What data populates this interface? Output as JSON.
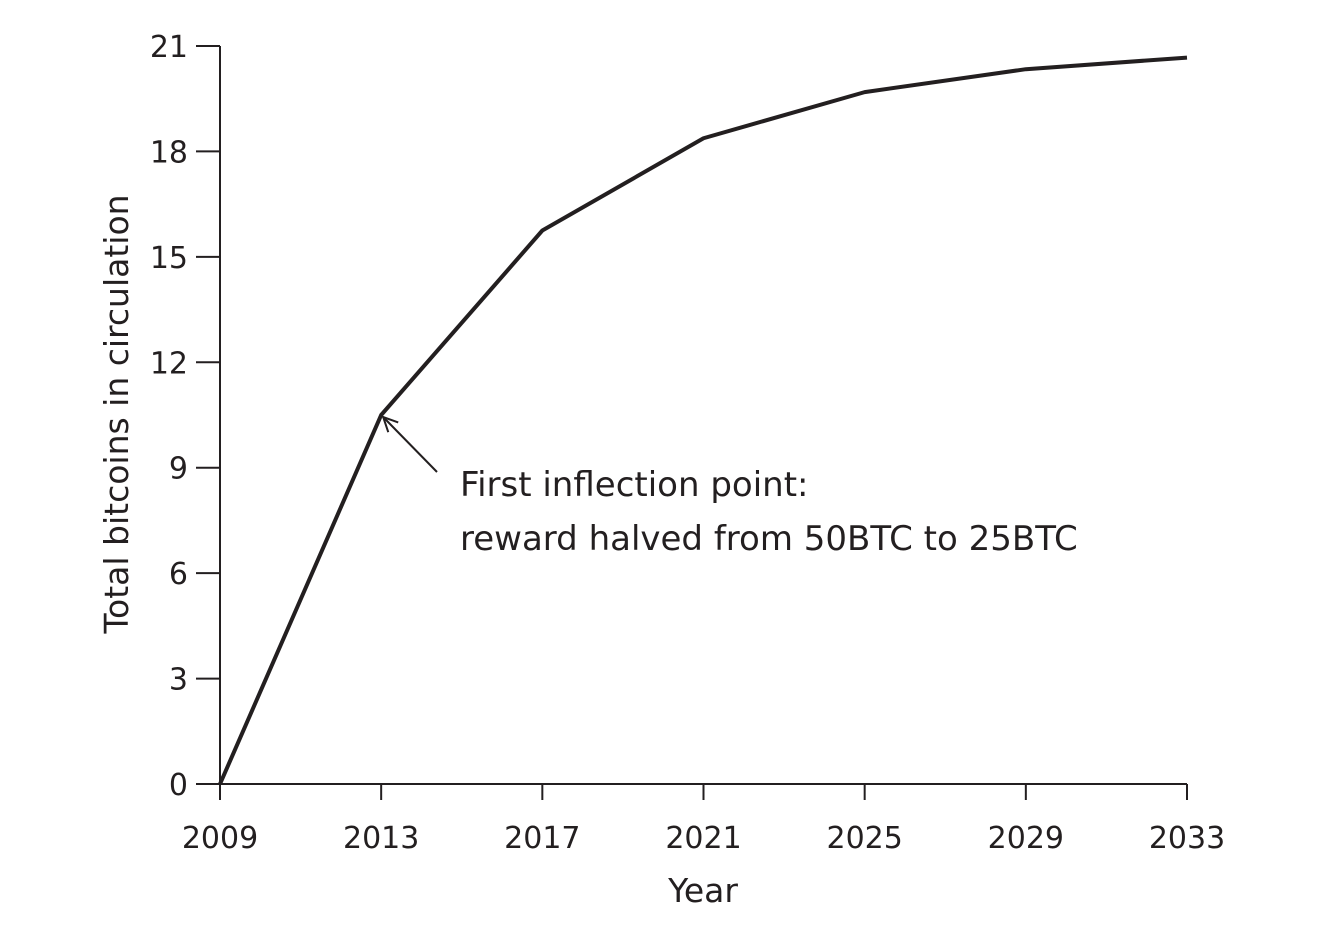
{
  "chart_data": {
    "type": "line",
    "xlabel": "Year",
    "ylabel": "Total bitcoins in circulation",
    "xlim": [
      2009,
      2033
    ],
    "ylim": [
      0,
      21
    ],
    "x_ticks": [
      2009,
      2013,
      2017,
      2021,
      2025,
      2029,
      2033
    ],
    "y_ticks": [
      0,
      3,
      6,
      9,
      12,
      15,
      18,
      21
    ],
    "grid": false,
    "series": [
      {
        "x": [
          2009,
          2013,
          2017,
          2021,
          2025,
          2029,
          2033
        ],
        "y": [
          0,
          10.5,
          15.75,
          18.375,
          19.6875,
          20.34,
          20.67
        ]
      }
    ],
    "annotation": {
      "line1": "First inflection point:",
      "line2": "reward halved from 50BTC to 25BTC",
      "x": 2013,
      "y": 10.5
    }
  }
}
